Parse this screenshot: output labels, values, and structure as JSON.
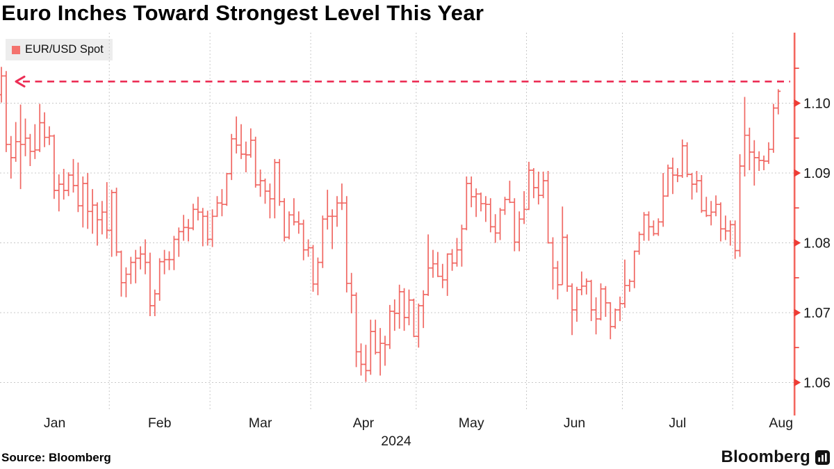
{
  "header": {
    "title": "Euro Inches Toward Strongest Level This Year"
  },
  "legend": {
    "label": "EUR/USD Spot"
  },
  "footer": {
    "source": "Source: Bloomberg",
    "brand": "Bloomberg"
  },
  "palette": {
    "bar": "#f06762",
    "legend_swatch": "#f4736e",
    "axis": "#f4675f",
    "axis_tick": "#ee3c35",
    "annotation": "#ec2e55",
    "gridline": "#c8c8c8",
    "text": "#1a1a1a",
    "legend_bg": "#ededed"
  },
  "chart_data": {
    "type": "ohlc-bar",
    "series_name": "EUR/USD Spot",
    "year_label": "2024",
    "months": [
      "Jan",
      "Feb",
      "Mar",
      "Apr",
      "May",
      "Jun",
      "Jul",
      "Aug"
    ],
    "month_start_indices": [
      1,
      23,
      44,
      65,
      87,
      110,
      130,
      153
    ],
    "ylim": [
      1.055,
      1.11
    ],
    "y_ticks": [
      {
        "v": 1.06,
        "label": "1.06"
      },
      {
        "v": 1.07,
        "label": "1.07"
      },
      {
        "v": 1.08,
        "label": "1.08"
      },
      {
        "v": 1.09,
        "label": "1.09"
      },
      {
        "v": 1.1,
        "label": "1.10"
      }
    ],
    "y_minor_ticks": [
      1.065,
      1.075,
      1.085,
      1.095,
      1.105
    ],
    "annotation": {
      "type": "dashed-hline",
      "value": 1.1031,
      "arrow": "left"
    },
    "bars": [
      [
        1.1012,
        1.1052,
        1.1001,
        1.1039
      ],
      [
        1.1039,
        1.1046,
        1.093,
        1.0941
      ],
      [
        1.0941,
        1.0953,
        1.0892,
        1.0922
      ],
      [
        1.0922,
        1.0973,
        1.0916,
        1.0945
      ],
      [
        1.0945,
        1.0998,
        1.0877,
        1.0941
      ],
      [
        1.0941,
        1.0978,
        1.0924,
        1.095
      ],
      [
        1.095,
        1.0956,
        1.091,
        1.0931
      ],
      [
        1.0931,
        1.097,
        1.092,
        1.0933
      ],
      [
        1.0933,
        1.0999,
        1.093,
        1.0972
      ],
      [
        1.0972,
        1.0987,
        1.0937,
        1.0951
      ],
      [
        1.0951,
        1.0967,
        1.094,
        1.0953
      ],
      [
        1.0953,
        1.0955,
        1.0863,
        1.0875
      ],
      [
        1.0875,
        1.0898,
        1.0845,
        1.0884
      ],
      [
        1.0884,
        1.0906,
        1.0862,
        1.0875
      ],
      [
        1.0875,
        1.0901,
        1.0867,
        1.0897
      ],
      [
        1.0897,
        1.092,
        1.0872,
        1.0882
      ],
      [
        1.0882,
        1.0915,
        1.0844,
        1.0853
      ],
      [
        1.0853,
        1.0895,
        1.0822,
        1.0885
      ],
      [
        1.0885,
        1.09,
        1.082,
        1.0845
      ],
      [
        1.0845,
        1.0877,
        1.0813,
        1.0854
      ],
      [
        1.0854,
        1.0858,
        1.0796,
        1.0833
      ],
      [
        1.0833,
        1.086,
        1.0812,
        1.0844
      ],
      [
        1.0844,
        1.0887,
        1.0806,
        1.0818
      ],
      [
        1.0818,
        1.0876,
        1.078,
        1.0872
      ],
      [
        1.0872,
        1.0879,
        1.0781,
        1.0787
      ],
      [
        1.0787,
        1.0789,
        1.0723,
        1.0743
      ],
      [
        1.0743,
        1.0765,
        1.0722,
        1.0755
      ],
      [
        1.0755,
        1.078,
        1.0741,
        1.0772
      ],
      [
        1.0772,
        1.079,
        1.0742,
        1.0778
      ],
      [
        1.0778,
        1.0795,
        1.0762,
        1.0784
      ],
      [
        1.0784,
        1.0805,
        1.0755,
        1.0772
      ],
      [
        1.0772,
        1.0786,
        1.0695,
        1.071
      ],
      [
        1.071,
        1.0733,
        1.0695,
        1.0727
      ],
      [
        1.0727,
        1.0778,
        1.0717,
        1.0773
      ],
      [
        1.0773,
        1.079,
        1.0755,
        1.0776
      ],
      [
        1.0776,
        1.0788,
        1.0761,
        1.0776
      ],
      [
        1.0776,
        1.081,
        1.0761,
        1.0805
      ],
      [
        1.0805,
        1.0822,
        1.078,
        1.0816
      ],
      [
        1.0816,
        1.084,
        1.0803,
        1.0822
      ],
      [
        1.0822,
        1.0834,
        1.0802,
        1.0821
      ],
      [
        1.0821,
        1.0856,
        1.0818,
        1.0848
      ],
      [
        1.0848,
        1.0866,
        1.0832,
        1.0844
      ],
      [
        1.0844,
        1.085,
        1.0795,
        1.0838
      ],
      [
        1.0838,
        1.0846,
        1.0796,
        1.0805
      ],
      [
        1.0805,
        1.0848,
        1.0794,
        1.0838
      ],
      [
        1.0838,
        1.0867,
        1.0837,
        1.0857
      ],
      [
        1.0857,
        1.0877,
        1.0838,
        1.0855
      ],
      [
        1.0855,
        1.09,
        1.0853,
        1.0899
      ],
      [
        1.0899,
        1.0956,
        1.089,
        1.0949
      ],
      [
        1.0949,
        1.0981,
        1.0928,
        1.094
      ],
      [
        1.094,
        1.097,
        1.092,
        1.0927
      ],
      [
        1.0927,
        1.0945,
        1.0901,
        1.0926
      ],
      [
        1.0926,
        1.0964,
        1.0922,
        1.0947
      ],
      [
        1.0947,
        1.0952,
        1.0879,
        1.0883
      ],
      [
        1.0883,
        1.0905,
        1.0866,
        1.0889
      ],
      [
        1.0889,
        1.0892,
        1.0856,
        1.0874
      ],
      [
        1.0874,
        1.0885,
        1.0835,
        1.0863
      ],
      [
        1.0863,
        1.092,
        1.0835,
        1.0915
      ],
      [
        1.0915,
        1.092,
        1.0853,
        1.0859
      ],
      [
        1.0859,
        1.0864,
        1.0802,
        1.0808
      ],
      [
        1.0808,
        1.0845,
        1.0805,
        1.084
      ],
      [
        1.084,
        1.0864,
        1.0825,
        1.083
      ],
      [
        1.083,
        1.0845,
        1.0813,
        1.0827
      ],
      [
        1.0827,
        1.0833,
        1.0775,
        1.079
      ],
      [
        1.079,
        1.0805,
        1.078,
        1.0793
      ],
      [
        1.0793,
        1.0797,
        1.073,
        1.0741
      ],
      [
        1.0741,
        1.0779,
        1.0725,
        1.0772
      ],
      [
        1.0772,
        1.0839,
        1.0764,
        1.0834
      ],
      [
        1.0834,
        1.0876,
        1.0819,
        1.0838
      ],
      [
        1.0838,
        1.0848,
        1.0791,
        1.0838
      ],
      [
        1.0838,
        1.0867,
        1.0823,
        1.0857
      ],
      [
        1.0857,
        1.0885,
        1.0847,
        1.0857
      ],
      [
        1.0857,
        1.0867,
        1.0729,
        1.0742
      ],
      [
        1.0742,
        1.0757,
        1.0699,
        1.0725
      ],
      [
        1.0725,
        1.0729,
        1.0622,
        1.0644
      ],
      [
        1.0644,
        1.0656,
        1.061,
        1.0626
      ],
      [
        1.0626,
        1.0654,
        1.0601,
        1.0617
      ],
      [
        1.0617,
        1.069,
        1.0611,
        1.0673
      ],
      [
        1.0673,
        1.069,
        1.064,
        1.0643
      ],
      [
        1.0643,
        1.0678,
        1.061,
        1.0656
      ],
      [
        1.0656,
        1.0667,
        1.0624,
        1.0654
      ],
      [
        1.0654,
        1.0711,
        1.0648,
        1.0702
      ],
      [
        1.0702,
        1.0719,
        1.0674,
        1.0699
      ],
      [
        1.0699,
        1.074,
        1.0677,
        1.073
      ],
      [
        1.073,
        1.0735,
        1.0674,
        1.0693
      ],
      [
        1.0693,
        1.0733,
        1.0682,
        1.0718
      ],
      [
        1.0718,
        1.072,
        1.0665,
        1.0666
      ],
      [
        1.0666,
        1.0713,
        1.065,
        1.071
      ],
      [
        1.071,
        1.0732,
        1.0678,
        1.0726
      ],
      [
        1.0726,
        1.0812,
        1.0724,
        1.0764
      ],
      [
        1.0764,
        1.079,
        1.075,
        1.077
      ],
      [
        1.077,
        1.0787,
        1.0751,
        1.0752
      ],
      [
        1.0752,
        1.077,
        1.0735,
        1.0747
      ],
      [
        1.0747,
        1.0785,
        1.0724,
        1.0784
      ],
      [
        1.0784,
        1.0791,
        1.076,
        1.0771
      ],
      [
        1.0771,
        1.0807,
        1.0766,
        1.079
      ],
      [
        1.079,
        1.0826,
        1.0766,
        1.082
      ],
      [
        1.082,
        1.0895,
        1.0818,
        1.0885
      ],
      [
        1.0885,
        1.0895,
        1.0851,
        1.0866
      ],
      [
        1.0866,
        1.0878,
        1.0837,
        1.087
      ],
      [
        1.087,
        1.0872,
        1.0845,
        1.0856
      ],
      [
        1.0856,
        1.0867,
        1.083,
        1.0855
      ],
      [
        1.0855,
        1.0864,
        1.0815,
        1.0823
      ],
      [
        1.0823,
        1.0841,
        1.08,
        1.0814
      ],
      [
        1.0814,
        1.085,
        1.0804,
        1.0847
      ],
      [
        1.0847,
        1.0866,
        1.084,
        1.0862
      ],
      [
        1.0862,
        1.0889,
        1.0857,
        1.0858
      ],
      [
        1.0858,
        1.0864,
        1.0788,
        1.0801
      ],
      [
        1.0801,
        1.0845,
        1.0788,
        1.0834
      ],
      [
        1.0834,
        1.0874,
        1.0827,
        1.0848
      ],
      [
        1.0848,
        1.0916,
        1.0847,
        1.0904
      ],
      [
        1.0904,
        1.0907,
        1.0864,
        1.0879
      ],
      [
        1.0879,
        1.0902,
        1.0855,
        1.0868
      ],
      [
        1.0868,
        1.0902,
        1.0864,
        1.0889
      ],
      [
        1.0889,
        1.0903,
        1.0799,
        1.08
      ],
      [
        1.08,
        1.0808,
        1.0733,
        1.0764
      ],
      [
        1.0764,
        1.0774,
        1.0719,
        1.074
      ],
      [
        1.074,
        1.0852,
        1.074,
        1.0808
      ],
      [
        1.0808,
        1.0812,
        1.073,
        1.0738
      ],
      [
        1.0738,
        1.0742,
        1.0668,
        1.0704
      ],
      [
        1.0704,
        1.0737,
        1.0687,
        1.0733
      ],
      [
        1.0733,
        1.0759,
        1.0725,
        1.0738
      ],
      [
        1.0738,
        1.0749,
        1.0726,
        1.0745
      ],
      [
        1.0745,
        1.0747,
        1.0688,
        1.0704
      ],
      [
        1.0704,
        1.0722,
        1.0669,
        1.0691
      ],
      [
        1.0691,
        1.0742,
        1.0689,
        1.0734
      ],
      [
        1.0734,
        1.0738,
        1.0694,
        1.0714
      ],
      [
        1.0714,
        1.0715,
        1.0662,
        1.068
      ],
      [
        1.068,
        1.0706,
        1.0677,
        1.0704
      ],
      [
        1.0704,
        1.0723,
        1.0688,
        1.0713
      ],
      [
        1.0713,
        1.0776,
        1.0707,
        1.0739
      ],
      [
        1.0739,
        1.0748,
        1.073,
        1.0745
      ],
      [
        1.0745,
        1.0789,
        1.0735,
        1.0788
      ],
      [
        1.0788,
        1.0816,
        1.0783,
        1.0812
      ],
      [
        1.0812,
        1.0844,
        1.0803,
        1.084
      ],
      [
        1.084,
        1.0845,
        1.0803,
        1.0823
      ],
      [
        1.0823,
        1.0832,
        1.081,
        1.0813
      ],
      [
        1.0813,
        1.0835,
        1.081,
        1.083
      ],
      [
        1.083,
        1.09,
        1.0823,
        1.0867
      ],
      [
        1.0867,
        1.0912,
        1.0866,
        1.0907
      ],
      [
        1.0907,
        1.0922,
        1.087,
        1.0897
      ],
      [
        1.0897,
        1.0907,
        1.0887,
        1.0896
      ],
      [
        1.0896,
        1.0948,
        1.0893,
        1.0939
      ],
      [
        1.0939,
        1.0944,
        1.0894,
        1.0898
      ],
      [
        1.0898,
        1.09,
        1.0862,
        1.0884
      ],
      [
        1.0884,
        1.0903,
        1.0872,
        1.0889
      ],
      [
        1.0889,
        1.0897,
        1.0843,
        1.0846
      ],
      [
        1.0846,
        1.0866,
        1.0837,
        1.0839
      ],
      [
        1.0839,
        1.086,
        1.0825,
        1.0844
      ],
      [
        1.0844,
        1.0868,
        1.0838,
        1.0855
      ],
      [
        1.0855,
        1.0858,
        1.0802,
        1.082
      ],
      [
        1.082,
        1.0839,
        1.0804,
        1.0817
      ],
      [
        1.0817,
        1.0832,
        1.0796,
        1.0826
      ],
      [
        1.0826,
        1.0832,
        1.0777,
        1.0789
      ],
      [
        1.0789,
        1.0927,
        1.078,
        1.091
      ],
      [
        1.091,
        1.1009,
        1.0895,
        1.0954
      ],
      [
        1.0954,
        1.0965,
        1.0904,
        1.093
      ],
      [
        1.093,
        1.0947,
        1.0882,
        1.0922
      ],
      [
        1.0922,
        1.0931,
        1.0903,
        1.0918
      ],
      [
        1.0918,
        1.0925,
        1.0904,
        1.0917
      ],
      [
        1.0917,
        1.0944,
        1.0913,
        1.0934
      ],
      [
        1.0934,
        1.0999,
        1.0929,
        1.0993
      ],
      [
        1.0993,
        1.102,
        1.0984,
        1.1017
      ]
    ]
  }
}
